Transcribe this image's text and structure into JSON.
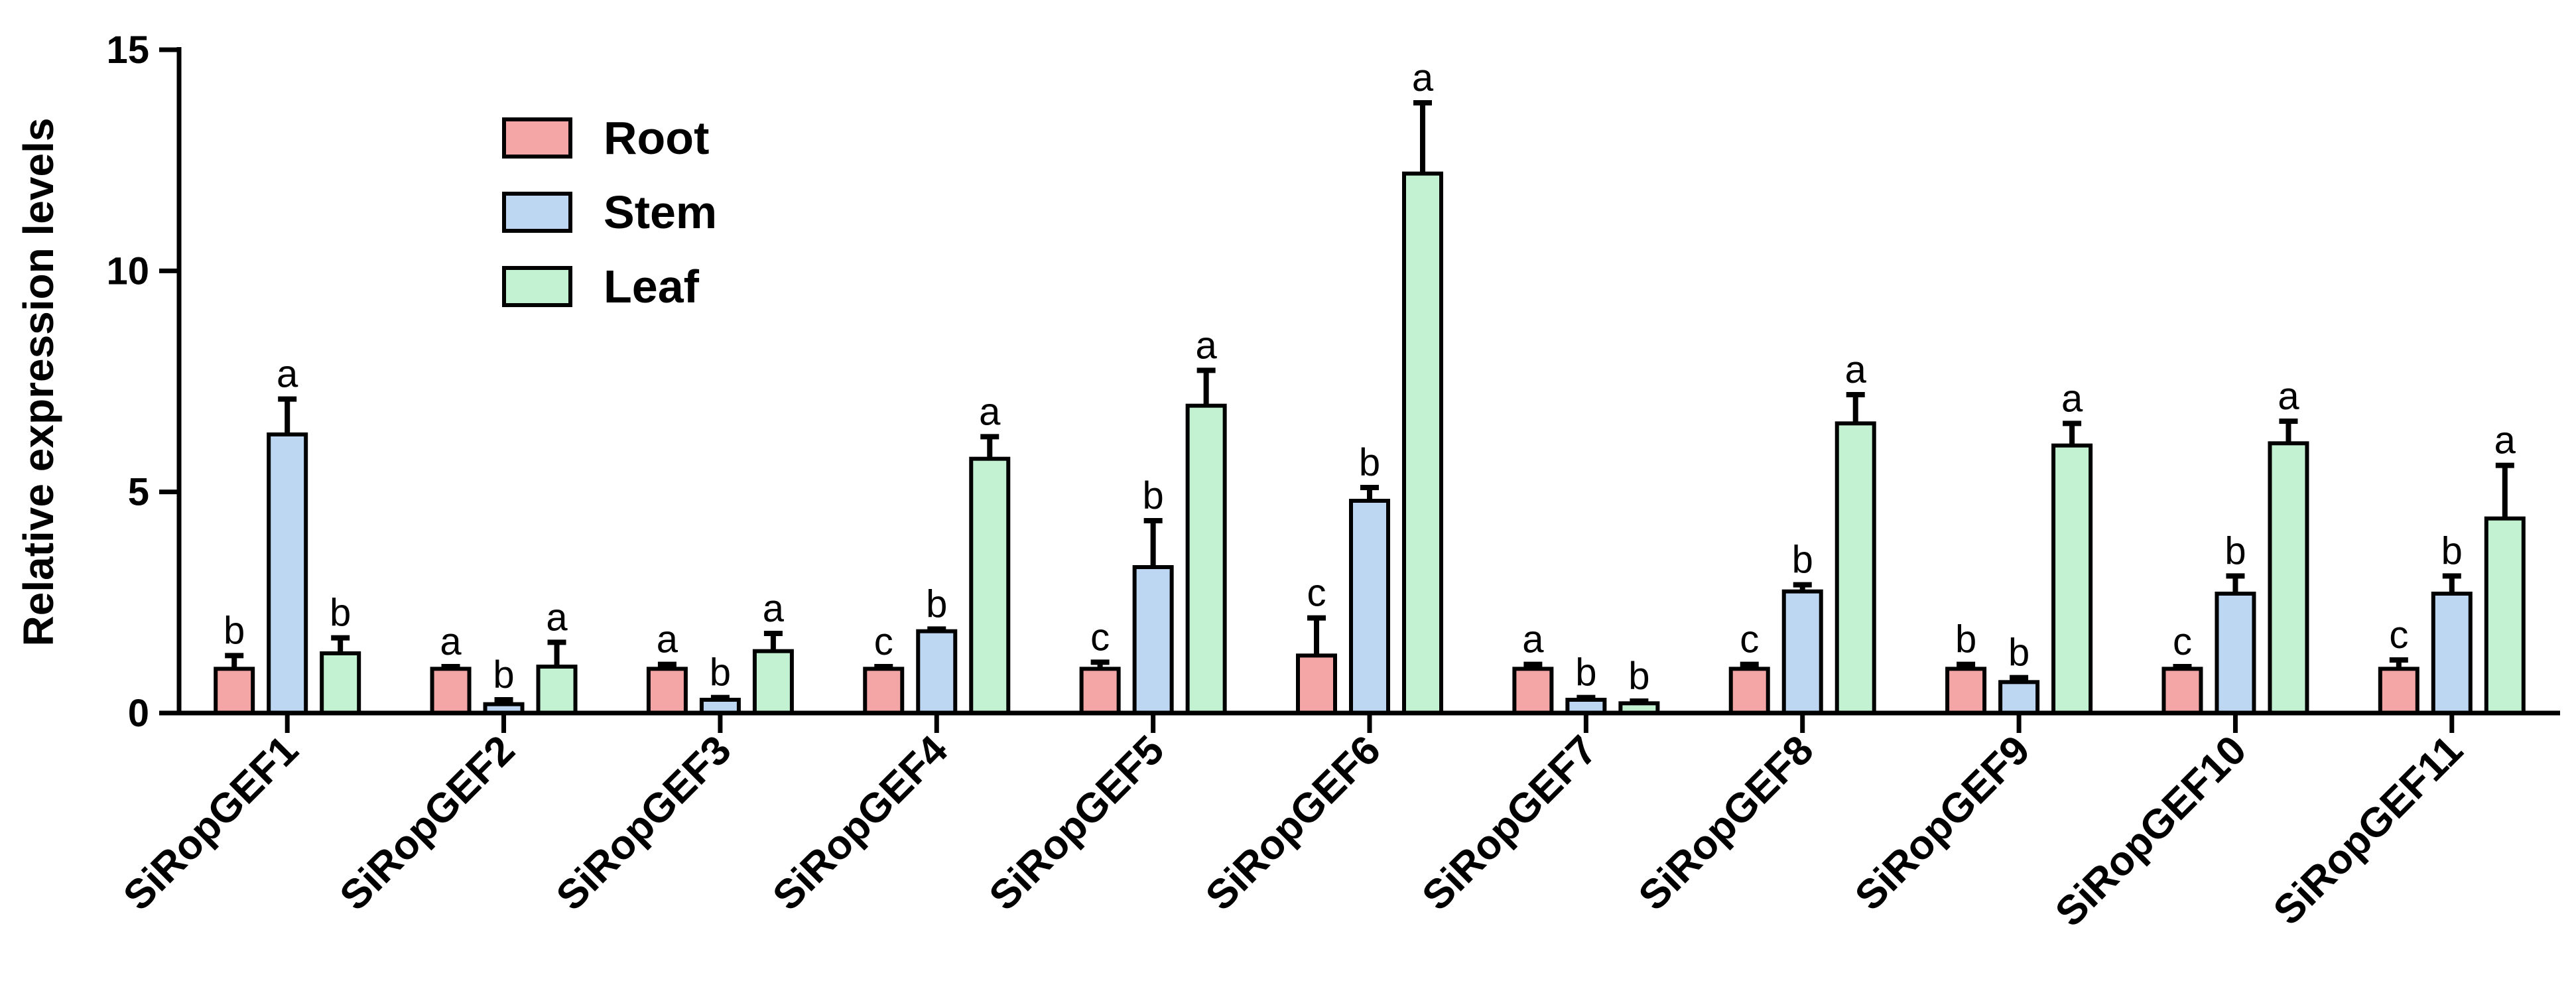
{
  "chart_data": {
    "type": "bar",
    "title": "",
    "xlabel": "",
    "ylabel": "Relative expression levels",
    "ylim": [
      0,
      15
    ],
    "yticks": [
      0,
      5,
      10,
      15
    ],
    "legend_position": "top-left",
    "categories": [
      "SiRopGEF1",
      "SiRopGEF2",
      "SiRopGEF3",
      "SiRopGEF4",
      "SiRopGEF5",
      "SiRopGEF6",
      "SiRopGEF7",
      "SiRopGEF8",
      "SiRopGEF9",
      "SiRopGEF10",
      "SiRopGEF11"
    ],
    "series": [
      {
        "name": "Root",
        "color": "#F4A6A6",
        "values": [
          1.0,
          1.0,
          1.0,
          1.0,
          1.0,
          1.3,
          1.0,
          1.0,
          1.0,
          1.0,
          1.0
        ],
        "errors": [
          0.3,
          0.05,
          0.1,
          0.05,
          0.15,
          0.85,
          0.1,
          0.1,
          0.1,
          0.05,
          0.2
        ],
        "letters": [
          "b",
          "a",
          "a",
          "c",
          "c",
          "c",
          "a",
          "c",
          "b",
          "c",
          "c"
        ]
      },
      {
        "name": "Stem",
        "color": "#BDD7F2",
        "values": [
          6.3,
          0.2,
          0.3,
          1.85,
          3.3,
          4.8,
          0.3,
          2.75,
          0.7,
          2.7,
          2.7
        ],
        "errors": [
          0.8,
          0.1,
          0.05,
          0.05,
          1.05,
          0.3,
          0.05,
          0.15,
          0.1,
          0.4,
          0.4
        ],
        "letters": [
          "a",
          "b",
          "b",
          "b",
          "b",
          "b",
          "b",
          "b",
          "b",
          "b",
          "b"
        ]
      },
      {
        "name": "Leaf",
        "color": "#C3F2D2",
        "values": [
          1.35,
          1.05,
          1.4,
          5.75,
          6.95,
          12.2,
          0.22,
          6.55,
          6.05,
          6.1,
          4.4
        ],
        "errors": [
          0.35,
          0.55,
          0.4,
          0.5,
          0.8,
          1.6,
          0.05,
          0.65,
          0.5,
          0.5,
          1.2
        ],
        "letters": [
          "b",
          "a",
          "a",
          "a",
          "a",
          "a",
          "b",
          "a",
          "a",
          "a",
          "a"
        ]
      }
    ]
  }
}
